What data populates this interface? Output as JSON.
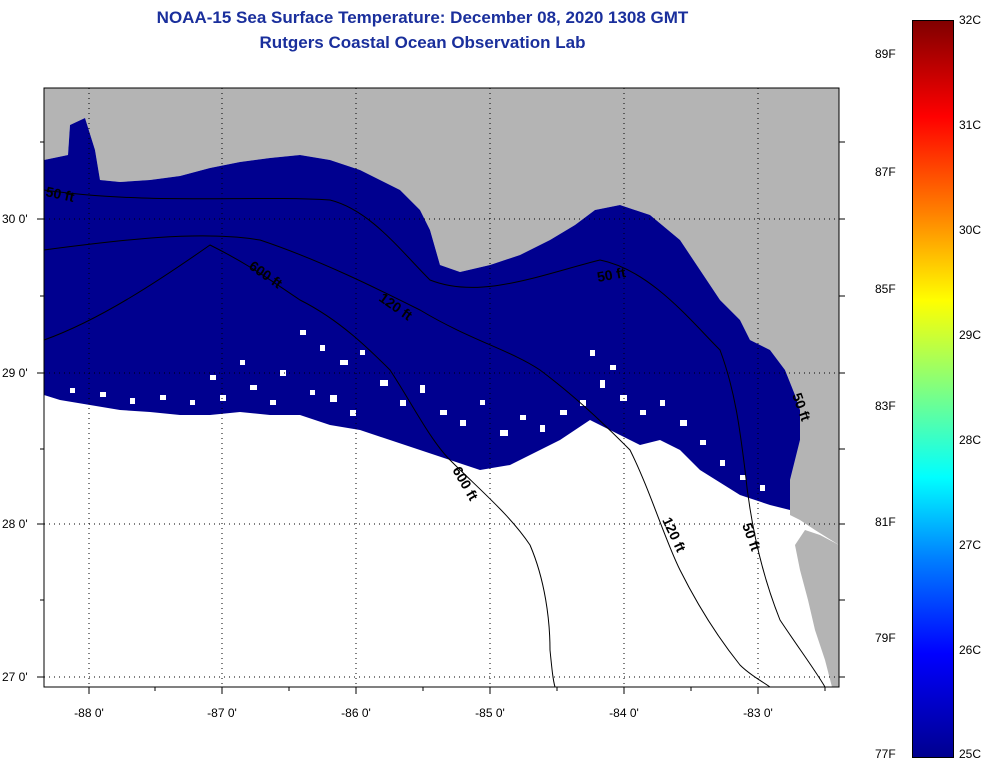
{
  "title": "NOAA-15 Sea Surface Temperature:  December 08, 2020 1308 GMT",
  "subtitle": "Rutgers Coastal Ocean Observation Lab",
  "colors": {
    "land": "#b4b4b4",
    "ocean_sst": "#00008f",
    "cloud": "#ffffff",
    "title": "#1a2f9c"
  },
  "longitude_labels": [
    "-88 0'",
    "-87 0'",
    "-86 0'",
    "-85 0'",
    "-84 0'",
    "-83 0'"
  ],
  "latitude_labels": [
    "30 0'",
    "29 0'",
    "28 0'",
    "27 0'"
  ],
  "contour_labels": [
    {
      "id": "c50-west",
      "text": "50 ft"
    },
    {
      "id": "c600-top",
      "text": "600 ft"
    },
    {
      "id": "c120-mid",
      "text": "120 ft"
    },
    {
      "id": "c50-bigbend",
      "text": "50 ft"
    },
    {
      "id": "c50-east",
      "text": "50 ft"
    },
    {
      "id": "c600-south",
      "text": "600 ft"
    },
    {
      "id": "c120-south",
      "text": "120 ft"
    },
    {
      "id": "c50-south",
      "text": "50 ft"
    }
  ],
  "colorbar": {
    "f_labels": [
      "89F",
      "87F",
      "85F",
      "83F",
      "81F",
      "79F",
      "77F"
    ],
    "c_labels": [
      "32C",
      "31C",
      "30C",
      "29C",
      "28C",
      "27C",
      "26C",
      "25C"
    ]
  }
}
